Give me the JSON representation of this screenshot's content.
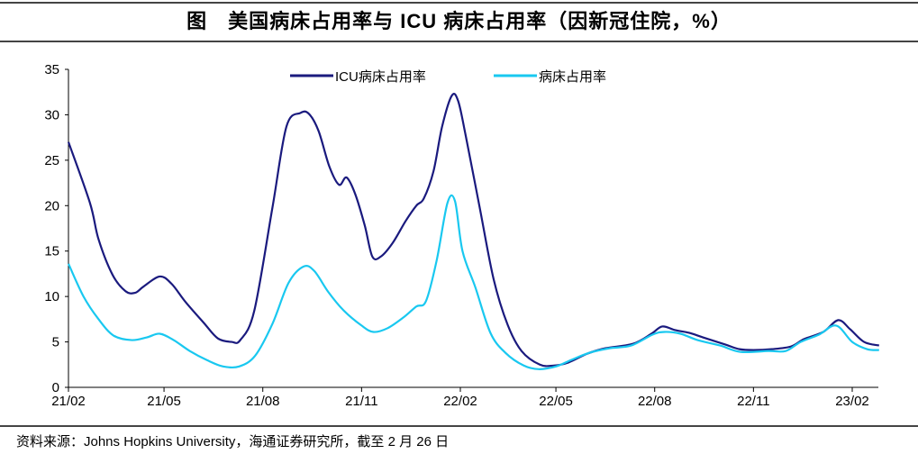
{
  "chart_data": {
    "type": "line",
    "title": "图　美国病床占用率与 ICU 病床占用率（因新冠住院，%）",
    "xlabel": "",
    "ylabel": "",
    "ylim": [
      0,
      35
    ],
    "yticks": [
      "0",
      "5",
      "10",
      "15",
      "20",
      "25",
      "30",
      "35"
    ],
    "xticks": [
      {
        "label": "21/02",
        "date": "2021-02-01"
      },
      {
        "label": "21/05",
        "date": "2021-05-01"
      },
      {
        "label": "21/08",
        "date": "2021-08-01"
      },
      {
        "label": "21/11",
        "date": "2021-11-01"
      },
      {
        "label": "22/02",
        "date": "2022-02-01"
      },
      {
        "label": "22/05",
        "date": "2022-05-01"
      },
      {
        "label": "22/08",
        "date": "2022-08-01"
      },
      {
        "label": "22/11",
        "date": "2022-11-01"
      },
      {
        "label": "23/02",
        "date": "2023-02-01"
      }
    ],
    "grid": false,
    "legend_position": "top-center",
    "series": [
      {
        "name": "ICU病床占用率",
        "color": "#1a1a7e",
        "points": [
          [
            "2021-02-01",
            27.0
          ],
          [
            "2021-02-21",
            20.3
          ],
          [
            "2021-03-01",
            16.3
          ],
          [
            "2021-03-14",
            12.4
          ],
          [
            "2021-03-26",
            10.6
          ],
          [
            "2021-04-04",
            10.4
          ],
          [
            "2021-04-12",
            11.1
          ],
          [
            "2021-04-27",
            12.2
          ],
          [
            "2021-05-08",
            11.4
          ],
          [
            "2021-05-21",
            9.4
          ],
          [
            "2021-06-07",
            7.1
          ],
          [
            "2021-06-20",
            5.4
          ],
          [
            "2021-07-03",
            5.0
          ],
          [
            "2021-07-11",
            5.2
          ],
          [
            "2021-07-24",
            8.4
          ],
          [
            "2021-08-10",
            19.8
          ],
          [
            "2021-08-23",
            28.7
          ],
          [
            "2021-09-05",
            30.2
          ],
          [
            "2021-09-13",
            30.1
          ],
          [
            "2021-09-22",
            28.2
          ],
          [
            "2021-10-02",
            24.3
          ],
          [
            "2021-10-11",
            22.3
          ],
          [
            "2021-10-18",
            23.1
          ],
          [
            "2021-10-26",
            21.3
          ],
          [
            "2021-11-04",
            17.8
          ],
          [
            "2021-11-11",
            14.4
          ],
          [
            "2021-11-19",
            14.4
          ],
          [
            "2021-11-30",
            15.9
          ],
          [
            "2021-12-12",
            18.3
          ],
          [
            "2021-12-22",
            20.0
          ],
          [
            "2021-12-29",
            20.8
          ],
          [
            "2022-01-07",
            23.8
          ],
          [
            "2022-01-15",
            28.7
          ],
          [
            "2022-01-24",
            32.1
          ],
          [
            "2022-01-30",
            31.5
          ],
          [
            "2022-02-06",
            27.7
          ],
          [
            "2022-02-19",
            19.8
          ],
          [
            "2022-03-04",
            11.9
          ],
          [
            "2022-03-17",
            6.9
          ],
          [
            "2022-03-30",
            4.0
          ],
          [
            "2022-04-16",
            2.5
          ],
          [
            "2022-04-29",
            2.4
          ],
          [
            "2022-05-12",
            2.7
          ],
          [
            "2022-05-30",
            3.7
          ],
          [
            "2022-06-16",
            4.3
          ],
          [
            "2022-07-12",
            4.8
          ],
          [
            "2022-07-29",
            5.9
          ],
          [
            "2022-08-08",
            6.7
          ],
          [
            "2022-08-20",
            6.3
          ],
          [
            "2022-09-02",
            6.0
          ],
          [
            "2022-09-15",
            5.5
          ],
          [
            "2022-10-06",
            4.7
          ],
          [
            "2022-10-19",
            4.2
          ],
          [
            "2022-11-01",
            4.1
          ],
          [
            "2022-11-18",
            4.2
          ],
          [
            "2022-12-06",
            4.5
          ],
          [
            "2022-12-18",
            5.3
          ],
          [
            "2023-01-05",
            6.1
          ],
          [
            "2023-01-19",
            7.4
          ],
          [
            "2023-01-30",
            6.4
          ],
          [
            "2023-02-12",
            5.0
          ],
          [
            "2023-02-26",
            4.6
          ]
        ]
      },
      {
        "name": "病床占用率",
        "color": "#19c8f0",
        "points": [
          [
            "2021-02-01",
            13.6
          ],
          [
            "2021-02-15",
            10.0
          ],
          [
            "2021-03-01",
            7.5
          ],
          [
            "2021-03-15",
            5.7
          ],
          [
            "2021-04-01",
            5.2
          ],
          [
            "2021-04-15",
            5.5
          ],
          [
            "2021-04-27",
            5.9
          ],
          [
            "2021-05-10",
            5.2
          ],
          [
            "2021-05-25",
            4.0
          ],
          [
            "2021-06-10",
            3.0
          ],
          [
            "2021-06-25",
            2.3
          ],
          [
            "2021-07-10",
            2.3
          ],
          [
            "2021-07-25",
            3.5
          ],
          [
            "2021-08-10",
            7.0
          ],
          [
            "2021-08-25",
            11.5
          ],
          [
            "2021-09-08",
            13.3
          ],
          [
            "2021-09-18",
            12.8
          ],
          [
            "2021-10-01",
            10.5
          ],
          [
            "2021-10-15",
            8.5
          ],
          [
            "2021-11-01",
            6.8
          ],
          [
            "2021-11-12",
            6.1
          ],
          [
            "2021-11-25",
            6.5
          ],
          [
            "2021-12-10",
            7.7
          ],
          [
            "2021-12-22",
            8.9
          ],
          [
            "2021-12-31",
            9.5
          ],
          [
            "2022-01-10",
            14.0
          ],
          [
            "2022-01-20",
            20.3
          ],
          [
            "2022-01-27",
            20.5
          ],
          [
            "2022-02-03",
            15.0
          ],
          [
            "2022-02-15",
            11.0
          ],
          [
            "2022-03-01",
            6.0
          ],
          [
            "2022-03-15",
            3.8
          ],
          [
            "2022-04-01",
            2.4
          ],
          [
            "2022-04-15",
            2.0
          ],
          [
            "2022-05-01",
            2.3
          ],
          [
            "2022-05-15",
            3.0
          ],
          [
            "2022-06-01",
            3.8
          ],
          [
            "2022-06-20",
            4.3
          ],
          [
            "2022-07-10",
            4.6
          ],
          [
            "2022-07-30",
            5.8
          ],
          [
            "2022-08-10",
            6.1
          ],
          [
            "2022-08-25",
            5.9
          ],
          [
            "2022-09-10",
            5.2
          ],
          [
            "2022-10-01",
            4.6
          ],
          [
            "2022-10-20",
            3.9
          ],
          [
            "2022-11-15",
            4.0
          ],
          [
            "2022-12-01",
            4.0
          ],
          [
            "2022-12-15",
            5.0
          ],
          [
            "2023-01-01",
            5.8
          ],
          [
            "2023-01-17",
            6.8
          ],
          [
            "2023-02-01",
            5.0
          ],
          [
            "2023-02-15",
            4.2
          ],
          [
            "2023-02-26",
            4.1
          ]
        ]
      }
    ]
  },
  "source": "资料来源：Johns Hopkins University，海通证券研究所，截至 2 月 26 日"
}
